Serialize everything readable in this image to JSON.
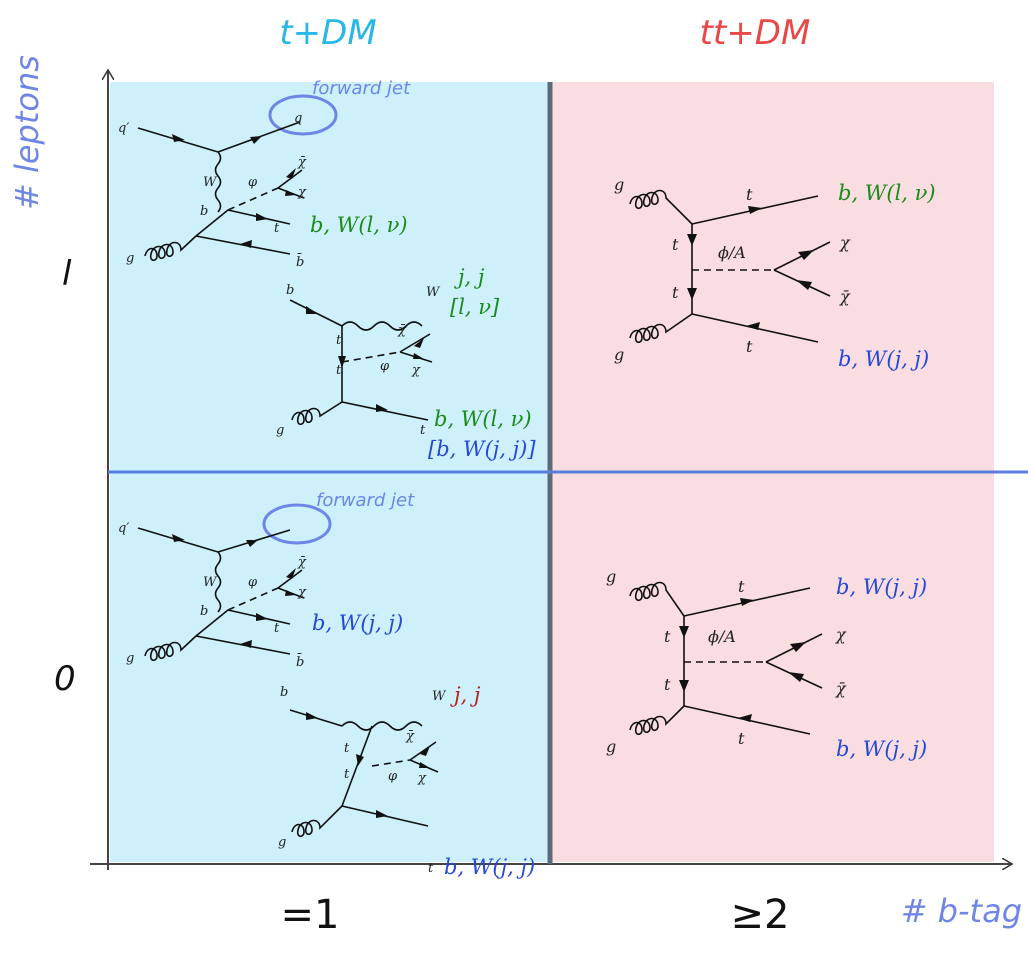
{
  "headers": {
    "left": "t+DM",
    "right": "tt+DM",
    "left_color": "#29b6e8",
    "right_color": "#e84848"
  },
  "axes": {
    "y_label": "# leptons",
    "x_label": "# b-tag",
    "label_color": "#6f86e6",
    "rows": [
      "l",
      "0"
    ],
    "cols": [
      "=1",
      "≥2"
    ]
  },
  "colors": {
    "tdm_panel": "#cdf0fb",
    "ttdm_panel": "#f9dde0",
    "divider": "#5a6a78",
    "row_line": "#5a7de0",
    "green": "#1c8a1c",
    "blue": "#2448d8",
    "dark_red": "#b22222"
  },
  "diagrams": {
    "forward_jet": "forward jet",
    "tchan": {
      "q_prime": "q′",
      "q": "q",
      "W": "W",
      "phi": "φ",
      "chi_bar": "χ̄",
      "chi": "χ",
      "b": "b",
      "t": "t",
      "g": "g",
      "b_bar": "b̄"
    },
    "tw": {
      "b": "b",
      "W": "W",
      "t1": "t",
      "t2": "t",
      "phi": "φ",
      "chi_bar": "χ̄",
      "chi": "χ",
      "g": "g",
      "t_out": "t"
    },
    "ttbar": {
      "g1": "g",
      "g2": "g",
      "t_top": "t",
      "t_bot": "t",
      "t_left1": "t",
      "t_left2": "t",
      "mediator": "ϕ/A",
      "chi": "χ",
      "chi_bar": "χ̄"
    }
  },
  "decays": {
    "tl_tchan": "b, W(l, ν)",
    "tl_tw_W": "j, j",
    "tl_tw_W2": "[l, ν]",
    "tl_tw_top": "b, W(l, ν)",
    "tl_tw_top2": "[b, W(j, j)]",
    "tr_top": "b, W(l, ν)",
    "tr_bot": "b, W(j, j)",
    "bl_tchan": "b, W(j, j)",
    "bl_tw_W": "j, j",
    "bl_tw_top": "b, W(j, j)",
    "br_top": "b, W(j, j)",
    "br_bot": "b, W(j, j)"
  }
}
